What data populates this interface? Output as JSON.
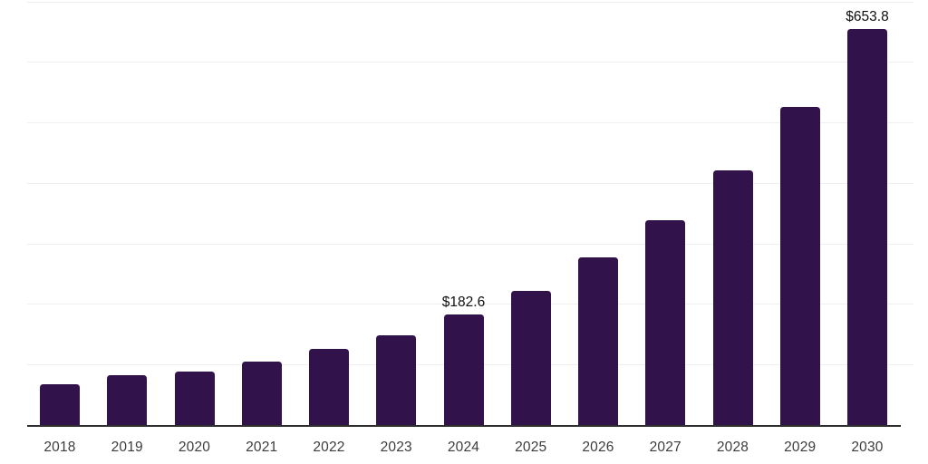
{
  "chart_data": {
    "type": "bar",
    "title": "",
    "xlabel": "",
    "ylabel": "",
    "categories": [
      "2018",
      "2019",
      "2020",
      "2021",
      "2022",
      "2023",
      "2024",
      "2025",
      "2026",
      "2027",
      "2028",
      "2029",
      "2030"
    ],
    "values": [
      67.9,
      82.9,
      88.9,
      104.9,
      125.2,
      148.7,
      182.6,
      222.2,
      276.8,
      339.0,
      421.2,
      524.9,
      653.8
    ],
    "labeled_points": [
      {
        "index": 6,
        "category": "2024",
        "text": "$182.6",
        "value": 182.6
      },
      {
        "index": 12,
        "category": "2030",
        "text": "$653.8",
        "value": 653.8
      }
    ],
    "value_prefix": "$",
    "ylim": [
      0,
      700
    ],
    "gridline_step": 100,
    "grid": "horizontal-only",
    "y_tick_labels_visible": false,
    "x_tick_labels_visible": true,
    "legend": "none"
  },
  "colors": {
    "bar": "#32124B",
    "gridline": "#EFEFEF",
    "axis_line": "#2E2E2E",
    "x_tick_label": "#3C3C3C",
    "data_label": "#101010",
    "background": "#FFFFFF"
  }
}
